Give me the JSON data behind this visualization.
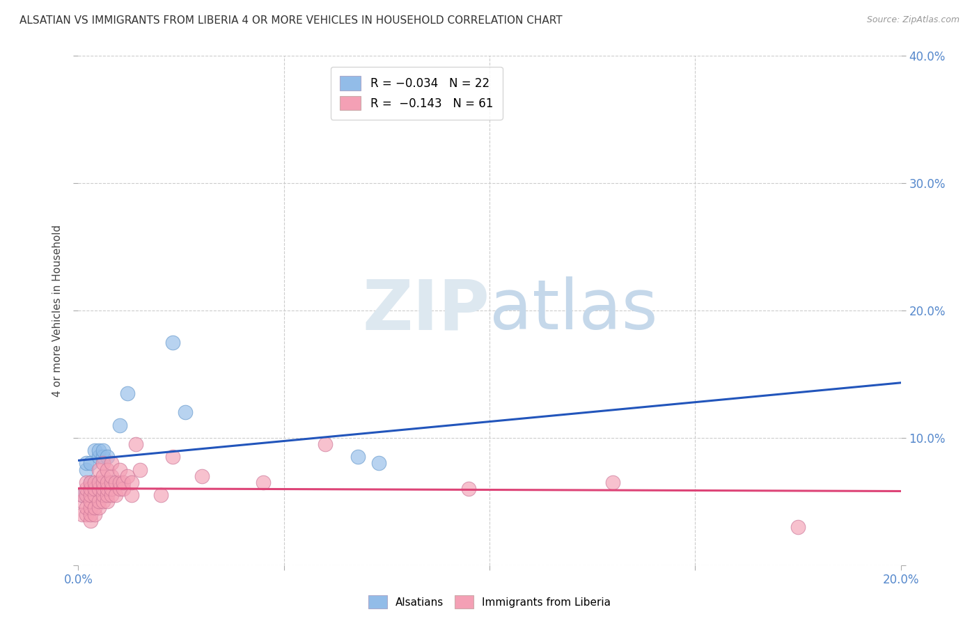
{
  "title": "ALSATIAN VS IMMIGRANTS FROM LIBERIA 4 OR MORE VEHICLES IN HOUSEHOLD CORRELATION CHART",
  "source": "Source: ZipAtlas.com",
  "ylabel": "4 or more Vehicles in Household",
  "xlim": [
    0.0,
    0.2
  ],
  "ylim": [
    0.0,
    0.4
  ],
  "xticks": [
    0.0,
    0.05,
    0.1,
    0.15,
    0.2
  ],
  "yticks": [
    0.0,
    0.1,
    0.2,
    0.3,
    0.4
  ],
  "blue_color": "#92bce8",
  "pink_color": "#f4a0b5",
  "blue_line_color": "#2255bb",
  "pink_line_color": "#dd4477",
  "alsatians_x": [
    0.001,
    0.002,
    0.002,
    0.003,
    0.003,
    0.003,
    0.004,
    0.004,
    0.005,
    0.005,
    0.005,
    0.006,
    0.006,
    0.007,
    0.007,
    0.008,
    0.01,
    0.012,
    0.023,
    0.026,
    0.068,
    0.073
  ],
  "alsatians_y": [
    0.055,
    0.075,
    0.08,
    0.06,
    0.065,
    0.08,
    0.06,
    0.09,
    0.085,
    0.09,
    0.06,
    0.085,
    0.09,
    0.065,
    0.085,
    0.065,
    0.11,
    0.135,
    0.175,
    0.12,
    0.085,
    0.08
  ],
  "liberia_x": [
    0.001,
    0.001,
    0.001,
    0.002,
    0.002,
    0.002,
    0.002,
    0.002,
    0.003,
    0.003,
    0.003,
    0.003,
    0.003,
    0.003,
    0.003,
    0.004,
    0.004,
    0.004,
    0.004,
    0.004,
    0.005,
    0.005,
    0.005,
    0.005,
    0.005,
    0.006,
    0.006,
    0.006,
    0.006,
    0.006,
    0.006,
    0.007,
    0.007,
    0.007,
    0.007,
    0.007,
    0.008,
    0.008,
    0.008,
    0.008,
    0.008,
    0.009,
    0.009,
    0.01,
    0.01,
    0.01,
    0.011,
    0.011,
    0.012,
    0.013,
    0.013,
    0.014,
    0.015,
    0.02,
    0.023,
    0.03,
    0.045,
    0.06,
    0.095,
    0.13,
    0.175
  ],
  "liberia_y": [
    0.04,
    0.05,
    0.055,
    0.04,
    0.045,
    0.055,
    0.06,
    0.065,
    0.035,
    0.04,
    0.045,
    0.05,
    0.055,
    0.06,
    0.065,
    0.04,
    0.045,
    0.055,
    0.06,
    0.065,
    0.045,
    0.05,
    0.06,
    0.065,
    0.075,
    0.05,
    0.055,
    0.06,
    0.065,
    0.07,
    0.08,
    0.05,
    0.055,
    0.06,
    0.065,
    0.075,
    0.055,
    0.06,
    0.065,
    0.07,
    0.08,
    0.055,
    0.065,
    0.06,
    0.065,
    0.075,
    0.06,
    0.065,
    0.07,
    0.055,
    0.065,
    0.095,
    0.075,
    0.055,
    0.085,
    0.07,
    0.065,
    0.095,
    0.06,
    0.065,
    0.03
  ]
}
